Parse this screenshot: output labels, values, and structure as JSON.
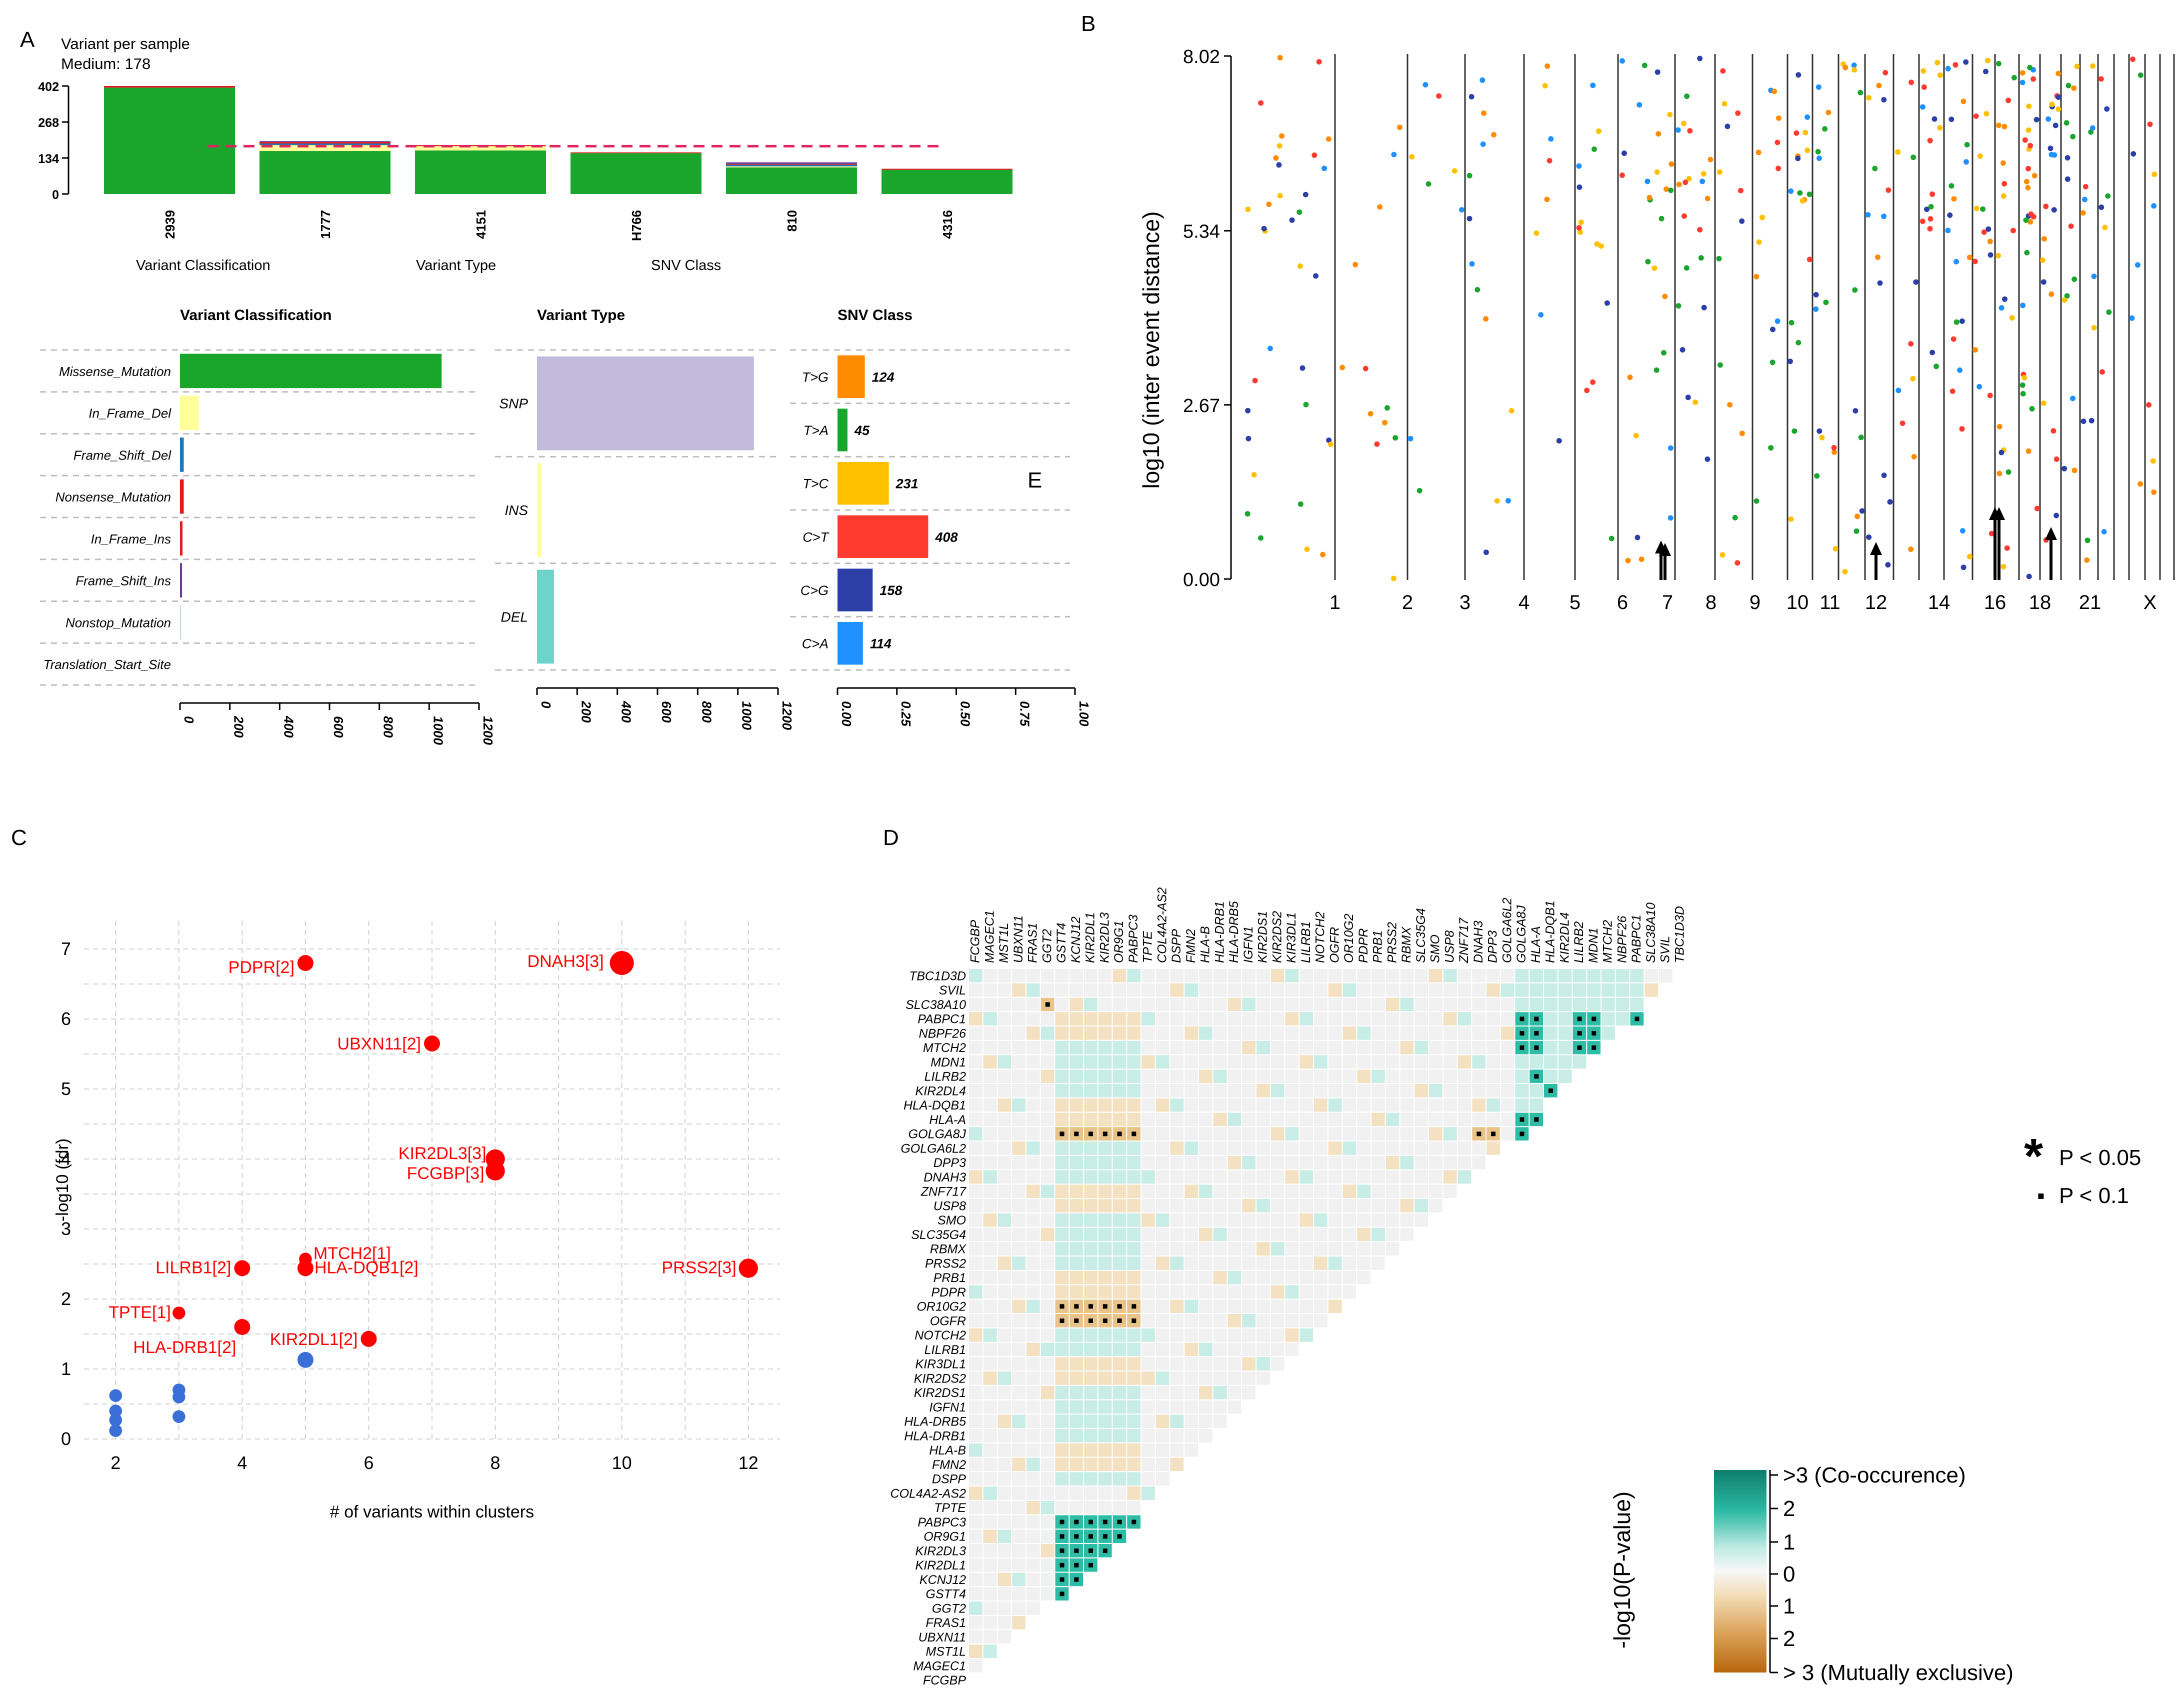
{
  "panel_labels": [
    "A",
    "B",
    "C",
    "D",
    "E"
  ],
  "colors": {
    "missense": "#1aa52c",
    "in_frame_del": "#ffff99",
    "frame_shift_del": "#1f78b4",
    "nonsense": "#e31a1c",
    "in_frame_ins": "#e31a1c",
    "frame_shift_ins": "#6a3d9a",
    "nonstop": "#a6cee3",
    "snp": "#bfb7da",
    "ins": "#ffff99",
    "del": "#66d1c8",
    "TG": "#ff8c00",
    "TA": "#1aa52c",
    "TC": "#ffc000",
    "CT": "#ff3b30",
    "CG": "#2c3fa8",
    "CA": "#1e90ff",
    "median_line": "#e0245e",
    "grid": "#d0d0d0",
    "scatter_red": "#ff0000",
    "scatter_blue": "#3a6fd8",
    "co_occur": "#17a08a",
    "mutex": "#c26a12"
  },
  "chart_data": [
    {
      "id": "A-top",
      "type": "bar",
      "title": "Variant per sample",
      "subtitle": "Medium: 178",
      "categories": [
        "2939",
        "1777",
        "4151",
        "H766",
        "810",
        "4316"
      ],
      "series": [
        {
          "name": "Missense_Mutation",
          "values": [
            396,
            160,
            162,
            152,
            99,
            90
          ]
        },
        {
          "name": "In_Frame_Del",
          "values": [
            0,
            22,
            16,
            0,
            4,
            0
          ]
        },
        {
          "name": "Frame_Shift_Del",
          "values": [
            0,
            6,
            0,
            0,
            6,
            0
          ]
        },
        {
          "name": "Nonsense_Mutation",
          "values": [
            6,
            6,
            4,
            3,
            3,
            4
          ]
        },
        {
          "name": "Frame_Shift_Ins",
          "values": [
            0,
            3,
            0,
            0,
            6,
            0
          ]
        }
      ],
      "yticks": [
        "0",
        "134",
        "268",
        "402"
      ],
      "ylim": [
        0,
        402
      ],
      "median": 178,
      "legend_titles": [
        "Variant Classification",
        "Variant Type",
        "SNV Class"
      ]
    },
    {
      "id": "A-classification",
      "type": "bar",
      "orientation": "horizontal",
      "title": "Variant Classification",
      "categories": [
        "Missense_Mutation",
        "In_Frame_Del",
        "Frame_Shift_Del",
        "Nonsense_Mutation",
        "In_Frame_Ins",
        "Frame_Shift_Ins",
        "Nonstop_Mutation",
        "Translation_Start_Site"
      ],
      "values": [
        1050,
        75,
        15,
        15,
        10,
        8,
        3,
        0
      ],
      "xticks": [
        "0",
        "200",
        "400",
        "600",
        "800",
        "1000",
        "1200"
      ],
      "xlim": [
        0,
        1200
      ]
    },
    {
      "id": "A-type",
      "type": "bar",
      "orientation": "horizontal",
      "title": "Variant Type",
      "categories": [
        "SNP",
        "INS",
        "DEL"
      ],
      "values": [
        1080,
        22,
        85
      ],
      "xticks": [
        "0",
        "200",
        "400",
        "600",
        "800",
        "1000",
        "1200"
      ],
      "xlim": [
        0,
        1200
      ]
    },
    {
      "id": "A-snv",
      "type": "bar",
      "orientation": "horizontal",
      "title": "SNV Class",
      "categories": [
        "T>G",
        "T>A",
        "T>C",
        "C>T",
        "C>G",
        "C>A"
      ],
      "values": [
        0.115,
        0.042,
        0.216,
        0.382,
        0.148,
        0.107
      ],
      "labels": [
        "124",
        "45",
        "231",
        "408",
        "158",
        "114"
      ],
      "xticks": [
        "0.00",
        "0.25",
        "0.50",
        "0.75",
        "1.00"
      ],
      "xlim": [
        0,
        1
      ]
    },
    {
      "id": "B",
      "type": "scatter",
      "title": "",
      "ylabel": "log10 (inter event distance)",
      "yticks": [
        "0.00",
        "2.67",
        "5.34",
        "8.02"
      ],
      "ylim": [
        0,
        8.02
      ],
      "chromosome_labels": [
        "1",
        "2",
        "3",
        "4",
        "5",
        "6",
        "7",
        "8",
        "9",
        "10",
        "11",
        "12",
        "14",
        "16",
        "18",
        "21",
        "X"
      ],
      "arrows_at": [
        "7",
        "12",
        "16",
        "18"
      ]
    },
    {
      "id": "C",
      "type": "scatter",
      "xlabel": "# of variants within clusters",
      "ylabel": "-log10 (fdr)",
      "xlim": [
        1.5,
        12.5
      ],
      "ylim": [
        0,
        7.4
      ],
      "xticks": [
        "2",
        "4",
        "6",
        "8",
        "10",
        "12"
      ],
      "yticks": [
        "0",
        "1",
        "2",
        "3",
        "4",
        "5",
        "6",
        "7"
      ],
      "points": [
        {
          "x": 5,
          "y": 6.8,
          "label": "PDPR[2]",
          "sig": true,
          "size": 1
        },
        {
          "x": 10,
          "y": 6.8,
          "label": "DNAH3[3]",
          "sig": true,
          "size": 2
        },
        {
          "x": 7,
          "y": 5.65,
          "label": "UBXN11[2]",
          "sig": true,
          "size": 1
        },
        {
          "x": 8,
          "y": 4.0,
          "label": "KIR2DL3[3]",
          "sig": true,
          "size": 1.4
        },
        {
          "x": 8,
          "y": 3.83,
          "label": "FCGBP[3]",
          "sig": true,
          "size": 1.4
        },
        {
          "x": 5,
          "y": 2.57,
          "label": "MTCH2[1]",
          "sig": true,
          "size": 0.6
        },
        {
          "x": 5,
          "y": 2.44,
          "label": "HLA-DQB1[2]",
          "sig": true,
          "size": 1
        },
        {
          "x": 4,
          "y": 2.44,
          "label": "LILRB1[2]",
          "sig": true,
          "size": 1
        },
        {
          "x": 12,
          "y": 2.44,
          "label": "PRSS2[3]",
          "sig": true,
          "size": 1.4
        },
        {
          "x": 3,
          "y": 1.8,
          "label": "TPTE[1]",
          "sig": true,
          "size": 0.6
        },
        {
          "x": 4,
          "y": 1.6,
          "label": "HLA-DRB1[2]",
          "sig": true,
          "size": 1
        },
        {
          "x": 6,
          "y": 1.43,
          "label": "KIR2DL1[2]",
          "sig": true,
          "size": 1
        },
        {
          "x": 5,
          "y": 1.13,
          "label": "",
          "sig": false,
          "size": 1
        },
        {
          "x": 2,
          "y": 0.62,
          "label": "",
          "sig": false,
          "size": 0.6
        },
        {
          "x": 2,
          "y": 0.4,
          "label": "",
          "sig": false,
          "size": 0.6
        },
        {
          "x": 2,
          "y": 0.27,
          "label": "",
          "sig": false,
          "size": 0.6
        },
        {
          "x": 2,
          "y": 0.12,
          "label": "",
          "sig": false,
          "size": 0.6
        },
        {
          "x": 3,
          "y": 0.7,
          "label": "",
          "sig": false,
          "size": 0.6
        },
        {
          "x": 3,
          "y": 0.6,
          "label": "",
          "sig": false,
          "size": 0.6
        },
        {
          "x": 3,
          "y": 0.32,
          "label": "",
          "sig": false,
          "size": 0.6
        }
      ]
    },
    {
      "id": "D",
      "type": "heatmap",
      "genes": [
        "FCGBP",
        "MAGEC1",
        "MST1L",
        "UBXN11",
        "FRAS1",
        "GGT2",
        "GSTT4",
        "KCNJ12",
        "KIR2DL1",
        "KIR2DL3",
        "OR9G1",
        "PABPC3",
        "TPTE",
        "COL4A2-AS2",
        "DSPP",
        "FMN2",
        "HLA-B",
        "HLA-DRB1",
        "HLA-DRB5",
        "IGFN1",
        "KIR2DS1",
        "KIR2DS2",
        "KIR3DL1",
        "LILRB1",
        "NOTCH2",
        "OGFR",
        "OR10G2",
        "PDPR",
        "PRB1",
        "PRSS2",
        "RBMX",
        "SLC35G4",
        "SMO",
        "USP8",
        "ZNF717",
        "DNAH3",
        "DPP3",
        "GOLGA6L2",
        "GOLGA8J",
        "HLA-A",
        "HLA-DQB1",
        "KIR2DL4",
        "LILRB2",
        "MDN1",
        "MTCH2",
        "NBPF26",
        "PABPC1",
        "SLC38A10",
        "SVIL",
        "TBC1D3D"
      ],
      "scale_title": "-log10(P-value)",
      "scale_labels": [
        ">3 (Co-occurence)",
        "2",
        "1",
        "0",
        "1",
        "2",
        "> 3 (Mutually exclusive)"
      ],
      "legend_sig": [
        {
          "symbol": "*",
          "label": "P < 0.05"
        },
        {
          "symbol": "▪",
          "label": "P < 0.1"
        }
      ]
    }
  ]
}
